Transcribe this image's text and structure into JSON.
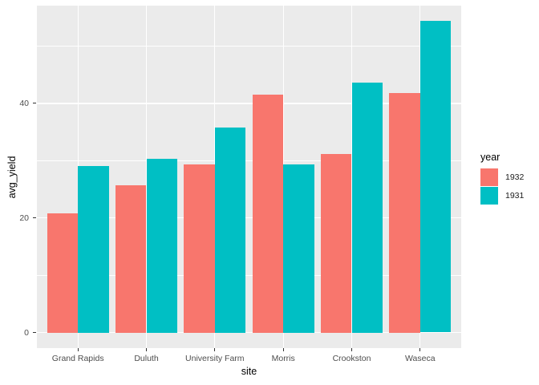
{
  "figure": {
    "background": "#FFFFFF",
    "panel_background": "#EBEBEB",
    "grid_color": "#FFFFFF",
    "axis_text_color": "#4D4D4D",
    "axis_title_color": "#000000",
    "tick_mark_color": "#333333"
  },
  "chart_data": {
    "type": "bar",
    "title": "",
    "xlabel": "site",
    "ylabel": "avg_yield",
    "categories": [
      "Grand Rapids",
      "Duluth",
      "University Farm",
      "Morris",
      "Crookston",
      "Waseca"
    ],
    "series": [
      {
        "name": "1932",
        "color": "#F8766D",
        "values": [
          20.81,
          25.7,
          29.33,
          41.51,
          31.18,
          41.87
        ]
      },
      {
        "name": "1931",
        "color": "#00BFC4",
        "values": [
          29.05,
          30.29,
          35.83,
          29.29,
          43.66,
          54.35
        ]
      }
    ],
    "grouping": "dodge",
    "bar_width_units": 0.45,
    "y_major_gridlines": [
      0,
      20,
      40
    ],
    "y_minor_gridlines": [
      10,
      30,
      50
    ],
    "y_tick_labels": [
      "0",
      "20",
      "40"
    ],
    "ylim": [
      -2.72,
      57.07
    ],
    "grid": true,
    "legend": {
      "title": "year",
      "position": "right",
      "entries": [
        "1932",
        "1931"
      ]
    }
  }
}
